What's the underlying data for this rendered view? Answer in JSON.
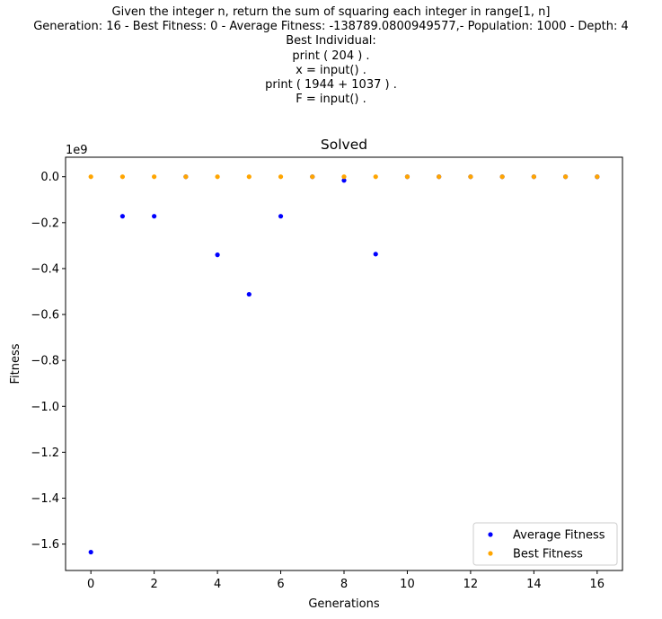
{
  "suptitle_lines": [
    "Given the integer n, return the sum of squaring each integer in range[1, n]",
    "Generation: 16 - Best Fitness: 0 - Average Fitness: -138789.0800949577,- Population: 1000 - Depth: 4",
    "Best Individual:",
    "print ( 204 ) .",
    "x = input() .",
    "print ( 1944 + 1037 ) .",
    "F = input() ."
  ],
  "chart_data": {
    "type": "scatter",
    "title": "Solved",
    "xlabel": "Generations",
    "ylabel": "Fitness",
    "y_offset_label": "1e9",
    "xlim": [
      -0.8,
      16.8
    ],
    "ylim": [
      -1.715,
      0.085
    ],
    "x_ticks": [
      0,
      2,
      4,
      6,
      8,
      10,
      12,
      14,
      16
    ],
    "x_tick_labels": [
      "0",
      "2",
      "4",
      "6",
      "8",
      "10",
      "12",
      "14",
      "16"
    ],
    "y_ticks": [
      0.0,
      -0.2,
      -0.4,
      -0.6,
      -0.8,
      -1.0,
      -1.2,
      -1.4,
      -1.6
    ],
    "y_tick_labels": [
      "0.0",
      "−0.2",
      "−0.4",
      "−0.6",
      "−0.8",
      "−1.0",
      "−1.2",
      "−1.4",
      "−1.6"
    ],
    "grid": false,
    "legend_position": "lower-right",
    "series": [
      {
        "name": "Average Fitness",
        "color": "#0000ff",
        "x": [
          0,
          1,
          2,
          3,
          4,
          5,
          6,
          7,
          8,
          9,
          10,
          11,
          12,
          13,
          14,
          15,
          16
        ],
        "y": [
          -1.635,
          -0.172,
          -0.172,
          0.0,
          -0.34,
          -0.512,
          -0.172,
          0.0,
          -0.016,
          -0.337,
          0.0,
          0.0,
          0.0,
          0.0,
          0.0,
          0.0,
          -0.000139
        ]
      },
      {
        "name": "Best Fitness",
        "color": "#ffa500",
        "x": [
          0,
          1,
          2,
          3,
          4,
          5,
          6,
          7,
          8,
          9,
          10,
          11,
          12,
          13,
          14,
          15,
          16
        ],
        "y": [
          0,
          0,
          0,
          0,
          0,
          0,
          0,
          0,
          0,
          0,
          0,
          0,
          0,
          0,
          0,
          0,
          0
        ]
      }
    ]
  }
}
